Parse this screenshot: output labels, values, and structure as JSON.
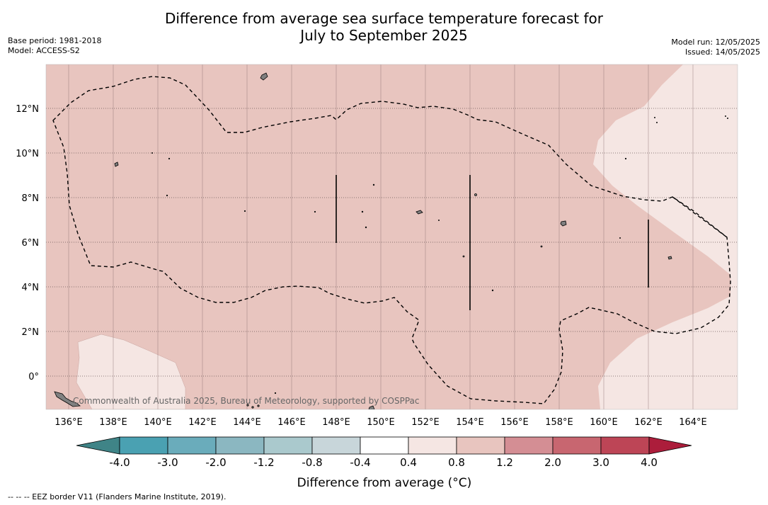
{
  "title_line1": "Difference from average sea surface temperature forecast for",
  "title_line2": "July to September 2025",
  "meta_left": {
    "base_period": "Base period: 1981-2018",
    "model": "Model: ACCESS-S2"
  },
  "meta_right": {
    "model_run": "Model run: 12/05/2025",
    "issued": "Issued: 14/05/2025"
  },
  "map": {
    "lon_labels": [
      "136°E",
      "138°E",
      "140°E",
      "142°E",
      "144°E",
      "146°E",
      "148°E",
      "150°E",
      "152°E",
      "154°E",
      "156°E",
      "158°E",
      "160°E",
      "162°E",
      "164°E"
    ],
    "lat_labels": [
      "12°N",
      "10°N",
      "8°N",
      "6°N",
      "4°N",
      "2°N",
      "0°"
    ],
    "attribution": "Commonwealth of Australia 2025, Bureau of Meteorology, supported by COSPPac",
    "colors": {
      "land": "#808080",
      "anomaly_0_4_0_8": "#f5e6e3",
      "anomaly_0_8_1_2": "#e8c5bf",
      "border": "#000000"
    }
  },
  "colorbar": {
    "label": "Difference from average (°C)",
    "tick_labels": [
      "-4.0",
      "-3.0",
      "-2.0",
      "-1.2",
      "-0.8",
      "-0.4",
      "0.4",
      "0.8",
      "1.2",
      "2.0",
      "3.0",
      "4.0"
    ],
    "colors": [
      "#3f8487",
      "#4aa1b2",
      "#6aacbb",
      "#8bb7c1",
      "#aac9cd",
      "#c8d6da",
      "#ffffff",
      "#f5e6e3",
      "#e8c5bf",
      "#d48e94",
      "#c86670",
      "#bd4556",
      "#ac1d3b"
    ]
  },
  "footnote": "-- -- -- EEZ border V11 (Flanders Marine Institute, 2019)."
}
